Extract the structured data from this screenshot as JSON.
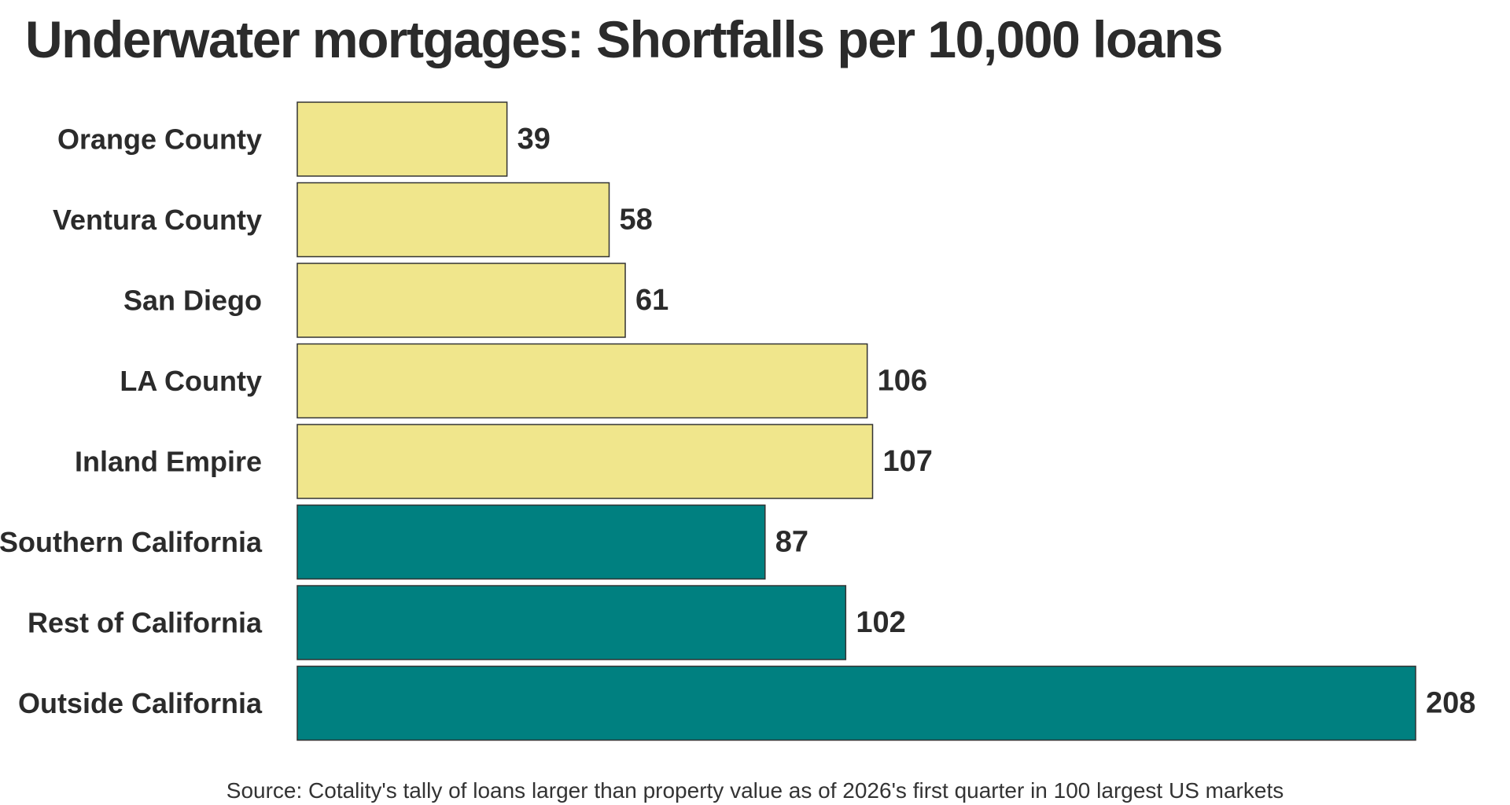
{
  "chart_data": {
    "type": "bar",
    "orientation": "horizontal",
    "title": "Underwater mortgages: Shortfalls per 10,000 loans",
    "categories": [
      "Orange County",
      "Ventura County",
      "San Diego",
      "LA County",
      "Inland Empire",
      "Southern California",
      "Rest of California",
      "Outside California"
    ],
    "values": [
      39,
      58,
      61,
      106,
      107,
      87,
      102,
      208
    ],
    "colors": [
      "#f0e68c",
      "#f0e68c",
      "#f0e68c",
      "#f0e68c",
      "#f0e68c",
      "#008080",
      "#008080",
      "#008080"
    ],
    "xlim": [
      0,
      208
    ],
    "grid": false,
    "legend": "none",
    "source": "Source: Cotality's tally of loans larger than property value as of 2026's first quarter in 100 largest US markets"
  }
}
